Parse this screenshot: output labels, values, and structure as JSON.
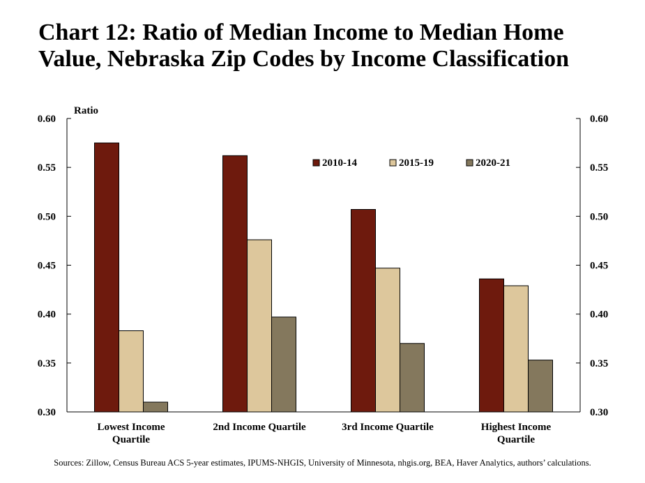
{
  "title_line1": "Chart 12: Ratio of Median Income to Median Home",
  "title_line2": "Value, Nebraska Zip Codes by Income Classification",
  "source": "Sources: Zillow, Census Bureau ACS 5-year estimates, IPUMS-NHGIS, University of Minnesota, nhgis.org, BEA, Haver Analytics, authors’ calculations.",
  "chart_data": {
    "type": "bar",
    "title": "Chart 12: Ratio of Median Income to Median Home Value, Nebraska Zip Codes by Income Classification",
    "ylabel": "Ratio",
    "ylim": [
      0.3,
      0.6
    ],
    "yticks": [
      "0.30",
      "0.35",
      "0.40",
      "0.45",
      "0.50",
      "0.55",
      "0.60"
    ],
    "right_axis": true,
    "grid": false,
    "legend_position": "top-right",
    "categories": [
      [
        "Lowest Income",
        "Quartile"
      ],
      [
        "2nd Income Quartile"
      ],
      [
        "3rd Income Quartile"
      ],
      [
        "Highest Income",
        "Quartile"
      ]
    ],
    "series": [
      {
        "name": "2010-14",
        "color": "#6E1A0D",
        "values": [
          0.575,
          0.562,
          0.507,
          0.436
        ]
      },
      {
        "name": "2015-19",
        "color": "#DDC79C",
        "values": [
          0.383,
          0.476,
          0.447,
          0.429
        ]
      },
      {
        "name": "2020-21",
        "color": "#84785D",
        "values": [
          0.31,
          0.397,
          0.37,
          0.353
        ]
      }
    ]
  }
}
